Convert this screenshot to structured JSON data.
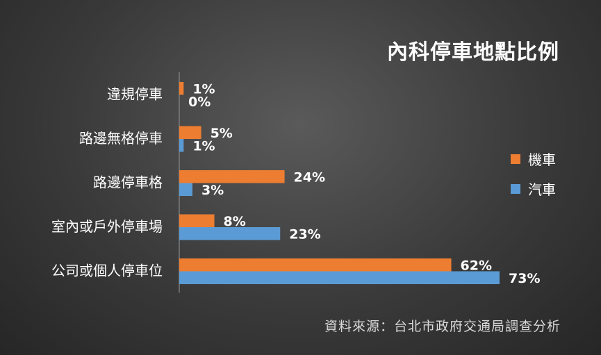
{
  "chart_data": {
    "type": "bar",
    "orientation": "horizontal",
    "title": "內科停車地點比例",
    "categories": [
      "違規停車",
      "路邊無格停車",
      "路邊停車格",
      "室內或戶外停車場",
      "公司或個人停車位"
    ],
    "series": [
      {
        "name": "機車",
        "color": "#ED7D31",
        "values": [
          1,
          5,
          24,
          8,
          62
        ],
        "labels": [
          "1%",
          "5%",
          "24%",
          "8%",
          "62%"
        ]
      },
      {
        "name": "汽車",
        "color": "#5B9BD5",
        "values": [
          0,
          1,
          3,
          23,
          73
        ],
        "labels": [
          "0%",
          "1%",
          "3%",
          "23%",
          "73%"
        ]
      }
    ],
    "xlim": [
      0,
      80
    ],
    "grid": false,
    "legend_position": "right"
  },
  "source": "資料來源：台北市政府交通局調查分析"
}
